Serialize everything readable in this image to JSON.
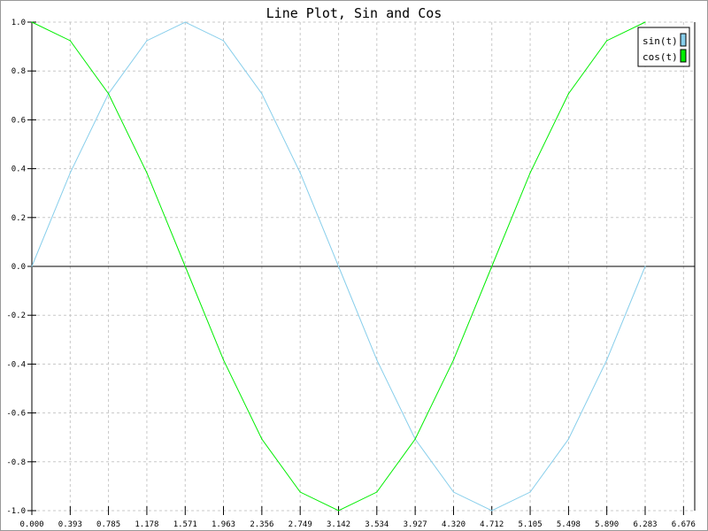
{
  "chart_data": {
    "type": "line",
    "title": "Line Plot, Sin and Cos",
    "xlabel": "",
    "ylabel": "",
    "xlim": [
      0,
      6.8
    ],
    "ylim": [
      -1.0,
      1.0
    ],
    "grid": true,
    "legend_position": "top-right",
    "x_ticks": [
      "0.000",
      "0.393",
      "0.785",
      "1.178",
      "1.571",
      "1.963",
      "2.356",
      "2.749",
      "3.142",
      "3.534",
      "3.927",
      "4.320",
      "4.712",
      "5.105",
      "5.498",
      "5.890",
      "6.283",
      "6.676"
    ],
    "y_ticks": [
      "1.0",
      "0.8",
      "0.6",
      "0.4",
      "0.2",
      "0.0",
      "-0.2",
      "-0.4",
      "-0.6",
      "-0.8",
      "-1.0"
    ],
    "x": [
      0,
      0.393,
      0.785,
      1.178,
      1.571,
      1.963,
      2.356,
      2.749,
      3.142,
      3.534,
      3.927,
      4.32,
      4.712,
      5.105,
      5.498,
      5.89,
      6.283
    ],
    "series": [
      {
        "name": "sin(t)",
        "color": "#87ceeb",
        "values": [
          0,
          0.383,
          0.707,
          0.924,
          1,
          0.924,
          0.707,
          0.383,
          0,
          -0.383,
          -0.707,
          -0.924,
          -1,
          -0.924,
          -0.707,
          -0.383,
          0
        ]
      },
      {
        "name": "cos(t)",
        "color": "#00ee00",
        "values": [
          1,
          0.924,
          0.707,
          0.383,
          0,
          -0.383,
          -0.707,
          -0.924,
          -1,
          -0.924,
          -0.707,
          -0.383,
          0,
          0.383,
          0.707,
          0.924,
          1
        ]
      }
    ]
  }
}
